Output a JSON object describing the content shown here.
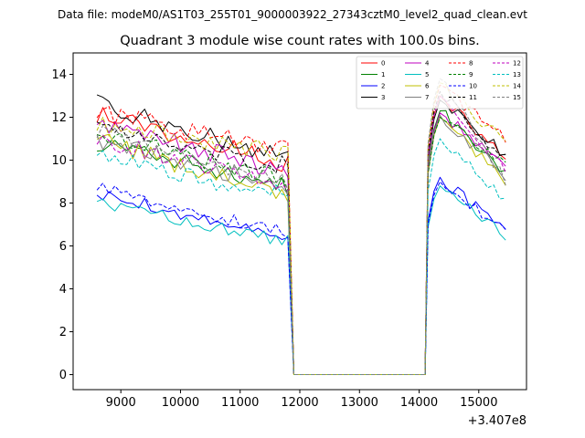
{
  "chart_data": {
    "type": "line",
    "suptitle": "Data file: modeM0/AS1T03_255T01_9000003922_27343cztM0_level2_quad_clean.evt",
    "title": "Quadrant 3 module wise count rates with 100.0s bins.",
    "xlabel": "",
    "ylabel": "",
    "x_offset_label": "+3.407e8",
    "xlim": [
      8200,
      15800
    ],
    "ylim": [
      -0.7,
      15
    ],
    "xticks": [
      9000,
      10000,
      11000,
      12000,
      13000,
      14000,
      15000
    ],
    "xtick_labels": [
      "9000",
      "10000",
      "11000",
      "12000",
      "13000",
      "14000",
      "15000"
    ],
    "yticks": [
      0,
      2,
      4,
      6,
      8,
      10,
      12,
      14
    ],
    "ytick_labels": [
      "0",
      "2",
      "4",
      "6",
      "8",
      "10",
      "12",
      "14"
    ],
    "legend_location": "top-right",
    "segments": [
      {
        "start": 8600,
        "end": 11800
      },
      {
        "start": 14150,
        "end": 15450
      }
    ],
    "gap": {
      "start": 11900,
      "end": 14100,
      "value": 0
    },
    "series": [
      {
        "name": "0",
        "color": "#ff0000",
        "dashed": false,
        "start_level": 12.2,
        "end_level": 9.8,
        "recovery_peak": 13.0,
        "end_level2": 10.2
      },
      {
        "name": "1",
        "color": "#008000",
        "dashed": false,
        "start_level": 10.8,
        "end_level": 8.7,
        "recovery_peak": 12.3,
        "end_level2": 9.3
      },
      {
        "name": "2",
        "color": "#0000ff",
        "dashed": false,
        "start_level": 8.5,
        "end_level": 6.3,
        "recovery_peak": 9.2,
        "end_level2": 6.6
      },
      {
        "name": "3",
        "color": "#000000",
        "dashed": false,
        "start_level": 12.6,
        "end_level": 10.0,
        "recovery_peak": 12.8,
        "end_level2": 10.3
      },
      {
        "name": "4",
        "color": "#bf00bf",
        "dashed": false,
        "start_level": 11.8,
        "end_level": 9.4,
        "recovery_peak": 12.2,
        "end_level2": 9.7
      },
      {
        "name": "5",
        "color": "#00bfbf",
        "dashed": false,
        "start_level": 8.0,
        "end_level": 6.2,
        "recovery_peak": 8.8,
        "end_level2": 6.4
      },
      {
        "name": "6",
        "color": "#bfbf00",
        "dashed": false,
        "start_level": 11.0,
        "end_level": 8.2,
        "recovery_peak": 12.0,
        "end_level2": 9.0
      },
      {
        "name": "7",
        "color": "#808080",
        "dashed": false,
        "start_level": 11.0,
        "end_level": 8.7,
        "recovery_peak": 12.1,
        "end_level2": 9.2
      },
      {
        "name": "8",
        "color": "#ff0000",
        "dashed": true,
        "start_level": 12.2,
        "end_level": 10.5,
        "recovery_peak": 13.5,
        "end_level2": 11.0
      },
      {
        "name": "9",
        "color": "#008000",
        "dashed": true,
        "start_level": 11.3,
        "end_level": 9.0,
        "recovery_peak": 12.0,
        "end_level2": 9.8
      },
      {
        "name": "10",
        "color": "#0000ff",
        "dashed": true,
        "start_level": 8.7,
        "end_level": 6.6,
        "recovery_peak": 9.0,
        "end_level2": 6.8
      },
      {
        "name": "11",
        "color": "#000000",
        "dashed": true,
        "start_level": 11.5,
        "end_level": 9.7,
        "recovery_peak": 13.2,
        "end_level2": 10.0
      },
      {
        "name": "12",
        "color": "#bf00bf",
        "dashed": true,
        "start_level": 11.0,
        "end_level": 8.9,
        "recovery_peak": 13.0,
        "end_level2": 9.5
      },
      {
        "name": "13",
        "color": "#00bfbf",
        "dashed": true,
        "start_level": 10.2,
        "end_level": 8.3,
        "recovery_peak": 11.0,
        "end_level2": 8.0
      },
      {
        "name": "14",
        "color": "#bfbf00",
        "dashed": true,
        "start_level": 11.6,
        "end_level": 10.3,
        "recovery_peak": 13.6,
        "end_level2": 10.8
      },
      {
        "name": "15",
        "color": "#808080",
        "dashed": true,
        "start_level": 11.4,
        "end_level": 9.0,
        "recovery_peak": 13.8,
        "end_level2": 9.0
      }
    ]
  }
}
